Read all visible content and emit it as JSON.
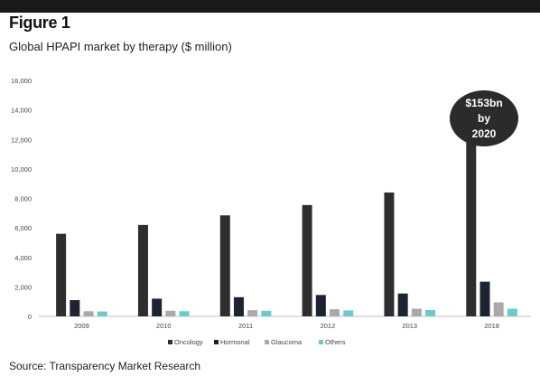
{
  "figure": {
    "label": "Figure 1",
    "subtitle": "Global HPAPI market by therapy ($ million)",
    "source": "Source: Transparency Market Research"
  },
  "callout": {
    "line1": "$153bn",
    "line2": "by",
    "line3": "2020",
    "color": "#2b2b2b"
  },
  "chart_data": {
    "type": "bar",
    "title": "Global HPAPI market by therapy ($ million)",
    "xlabel": "",
    "ylabel": "",
    "categories": [
      "2009",
      "2010",
      "2011",
      "2012",
      "2013",
      "2018"
    ],
    "ylim": [
      0,
      16000
    ],
    "yticks": [
      0,
      2000,
      4000,
      6000,
      8000,
      10000,
      12000,
      14000,
      16000
    ],
    "ytick_labels": [
      "0",
      "2,000",
      "4,000",
      "6,000",
      "8,000",
      "10,000",
      "12,000",
      "14,000",
      "16,000"
    ],
    "grid": false,
    "legend_position": "bottom",
    "series": [
      {
        "name": "Oncology",
        "color": "#2e2e2e",
        "values": [
          5600,
          6200,
          6850,
          7550,
          8400,
          13650
        ]
      },
      {
        "name": "Hormonal",
        "color": "#1c2433",
        "values": [
          1100,
          1200,
          1300,
          1450,
          1550,
          2350
        ]
      },
      {
        "name": "Glaucoma",
        "color": "#a9a9a9",
        "values": [
          350,
          380,
          420,
          480,
          520,
          950
        ]
      },
      {
        "name": "Others",
        "color": "#66cccc",
        "values": [
          330,
          350,
          380,
          400,
          430,
          520
        ]
      }
    ]
  }
}
